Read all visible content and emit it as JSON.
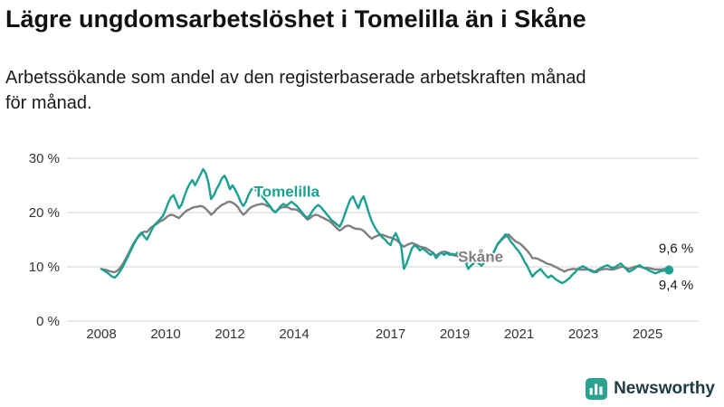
{
  "header": {
    "title": "Lägre ungdomsarbetslöshet i Tomelilla än i Skåne",
    "subtitle_lines": [
      "Arbetssökande som andel av den registerbaserade arbetskraften månad",
      "för månad."
    ]
  },
  "footer": {
    "brand": "Newsworthy",
    "brand_icon_color": "#2ba18f",
    "brand_text_color": "#1d3a45"
  },
  "chart_data": {
    "type": "line",
    "title": "Lägre ungdomsarbetslöshet i Tomelilla än i Skåne",
    "xlabel": "",
    "ylabel": "",
    "ylim": [
      0,
      33
    ],
    "x_domain": [
      2008,
      2025.75
    ],
    "grid": "horizontal",
    "legend": "inline-labels",
    "colors": {
      "grid": "#d3d3d3",
      "axis_text": "#333333"
    },
    "x_ticks": [
      2008,
      2010,
      2012,
      2014,
      2017,
      2019,
      2021,
      2023,
      2025
    ],
    "y_ticks": [
      {
        "value": 0,
        "label": "0 %"
      },
      {
        "value": 10,
        "label": "10 %"
      },
      {
        "value": 20,
        "label": "20 %"
      },
      {
        "value": 30,
        "label": "30 %"
      }
    ],
    "years": [
      2008,
      2009,
      2010,
      2011,
      2012,
      2013,
      2014,
      2015,
      2016,
      2017,
      2018,
      2019,
      2020,
      2021,
      2022,
      2023,
      2024,
      2025
    ],
    "unit": "%",
    "series": [
      {
        "name": "Tomelilla",
        "color": "#1aa191",
        "dot_radius": 5,
        "end_value_label": "9,4 %",
        "values_by_year": {
          "2008": [
            9.6,
            9.3,
            9.0,
            8.6,
            8.2,
            8.0,
            8.5,
            9.2,
            10.0,
            11.0,
            12.0,
            13.0
          ],
          "2009": [
            14.0,
            15.0,
            15.8,
            16.3,
            15.6,
            15.0,
            16.0,
            17.0,
            17.8,
            18.3,
            18.8,
            19.4
          ],
          "2010": [
            20.5,
            21.8,
            22.8,
            23.2,
            22.0,
            20.8,
            21.5,
            23.0,
            24.3,
            25.3,
            26.0,
            25.0
          ],
          "2011": [
            26.0,
            27.0,
            28.0,
            27.2,
            25.5,
            22.5,
            23.2,
            24.3,
            25.2,
            26.3,
            26.8,
            25.8
          ],
          "2012": [
            24.3,
            25.0,
            24.2,
            23.2,
            22.0,
            21.2,
            22.0,
            23.3,
            24.2,
            24.6,
            24.0,
            23.4
          ],
          "2013": [
            23.0,
            22.4,
            21.8,
            21.2,
            20.4,
            20.0,
            20.6,
            21.2,
            21.6,
            21.2,
            21.6,
            22.0
          ],
          "2014": [
            21.6,
            21.2,
            20.6,
            20.0,
            19.4,
            19.0,
            19.6,
            20.4,
            21.0,
            21.4,
            21.0,
            20.4
          ],
          "2015": [
            19.8,
            19.2,
            18.6,
            18.2,
            17.8,
            17.4,
            18.4,
            19.8,
            21.2,
            22.4,
            23.0,
            21.8
          ],
          "2016": [
            20.8,
            22.2,
            23.0,
            21.4,
            19.8,
            18.4,
            17.4,
            16.6,
            16.0,
            15.4,
            15.0,
            14.4
          ],
          "2017": [
            14.0,
            15.4,
            16.2,
            15.0,
            13.8,
            9.6,
            10.6,
            12.0,
            13.4,
            14.0,
            13.6,
            13.0
          ],
          "2018": [
            13.4,
            13.0,
            12.6,
            12.2,
            12.6,
            11.6,
            12.2,
            12.6,
            12.2,
            12.6,
            12.2,
            12.4
          ],
          "2019": [
            12.2,
            12.6,
            12.0,
            11.6,
            11.0,
            9.6,
            10.2,
            10.6,
            11.0,
            10.6,
            10.2,
            10.8
          ],
          "2020": [
            11.2,
            11.6,
            12.2,
            13.2,
            14.2,
            14.8,
            15.4,
            16.0,
            15.4,
            14.6,
            14.0,
            13.4
          ],
          "2021": [
            12.8,
            12.0,
            11.0,
            10.2,
            9.2,
            8.2,
            8.8,
            9.2,
            9.6,
            9.0,
            8.4,
            8.0
          ],
          "2022": [
            8.4,
            8.0,
            7.6,
            7.3,
            7.0,
            7.2,
            7.6,
            8.0,
            8.6,
            9.0,
            9.6,
            9.9
          ],
          "2023": [
            10.1,
            9.8,
            9.5,
            9.2,
            9.0,
            9.3,
            9.6,
            9.9,
            10.1,
            10.3,
            10.0,
            9.8
          ],
          "2024": [
            10.0,
            10.3,
            10.6,
            10.1,
            9.6,
            9.1,
            9.3,
            9.6,
            10.0,
            10.3,
            10.0,
            9.7
          ],
          "2025": [
            9.5,
            9.2,
            9.0,
            8.8,
            9.0,
            9.2,
            9.3,
            9.4,
            9.4
          ]
        }
      },
      {
        "name": "Skåne",
        "color": "#7f7f7f",
        "dot_radius": 4,
        "end_value_label": "9,6 %",
        "values_by_year": {
          "2008": [
            9.6,
            9.5,
            9.4,
            9.2,
            9.1,
            9.0,
            9.3,
            9.8,
            10.5,
            11.4,
            12.3,
            13.3
          ],
          "2009": [
            14.3,
            15.0,
            15.6,
            16.1,
            16.5,
            16.4,
            17.0,
            17.4,
            17.7,
            18.0,
            18.4,
            18.6
          ],
          "2010": [
            19.0,
            19.4,
            19.6,
            19.5,
            19.2,
            19.0,
            19.5,
            20.0,
            20.4,
            20.6,
            20.9,
            21.0
          ],
          "2011": [
            21.1,
            21.2,
            21.1,
            20.7,
            20.2,
            19.6,
            20.0,
            20.6,
            21.0,
            21.4,
            21.6,
            21.9
          ],
          "2012": [
            22.0,
            21.8,
            21.5,
            21.0,
            20.2,
            19.6,
            20.0,
            20.6,
            21.0,
            21.2,
            21.4,
            21.5
          ],
          "2013": [
            21.6,
            21.5,
            21.2,
            21.0,
            20.5,
            20.1,
            20.5,
            20.9,
            21.0,
            21.0,
            20.9,
            20.6
          ],
          "2014": [
            20.6,
            20.5,
            20.2,
            19.7,
            19.2,
            18.7,
            19.0,
            19.4,
            19.6,
            19.5,
            19.2,
            19.0
          ],
          "2015": [
            18.7,
            18.5,
            18.1,
            17.6,
            17.1,
            16.7,
            17.0,
            17.4,
            17.6,
            17.5,
            17.2,
            17.0
          ],
          "2016": [
            17.0,
            16.9,
            16.6,
            16.1,
            15.6,
            15.2,
            15.5,
            15.7,
            15.9,
            15.9,
            15.7,
            15.5
          ],
          "2017": [
            15.4,
            15.2,
            15.0,
            14.6,
            14.1,
            13.7,
            14.0,
            14.2,
            14.4,
            14.2,
            14.0,
            13.7
          ],
          "2018": [
            13.6,
            13.5,
            13.2,
            12.9,
            12.5,
            12.1,
            12.4,
            12.7,
            12.8,
            12.7,
            12.5,
            12.2
          ],
          "2019": [
            12.1,
            12.0,
            11.8,
            11.5,
            11.2,
            10.8,
            11.1,
            11.4,
            11.5,
            11.5,
            11.4,
            11.4
          ],
          "2020": [
            11.5,
            11.6,
            12.1,
            13.1,
            14.1,
            14.7,
            15.2,
            15.6,
            16.0,
            15.5,
            15.0,
            14.6
          ],
          "2021": [
            14.4,
            14.0,
            13.5,
            13.0,
            12.4,
            11.6,
            11.6,
            11.5,
            11.2,
            11.0,
            10.7,
            10.5
          ],
          "2022": [
            10.4,
            10.1,
            9.9,
            9.6,
            9.4,
            9.1,
            9.4,
            9.5,
            9.6,
            9.6,
            9.5,
            9.5
          ],
          "2023": [
            9.5,
            9.5,
            9.5,
            9.4,
            9.1,
            9.0,
            9.4,
            9.5,
            9.6,
            9.6,
            9.5,
            9.5
          ],
          "2024": [
            9.6,
            9.8,
            10.0,
            10.0,
            9.8,
            9.6,
            9.8,
            10.0,
            10.1,
            10.0,
            9.9,
            9.8
          ],
          "2025": [
            9.8,
            9.7,
            9.6,
            9.5,
            9.5,
            9.5,
            9.6,
            9.6,
            9.6
          ]
        }
      }
    ],
    "annotations": [
      {
        "text": "Tomelilla",
        "year": 2012.75,
        "value": 22.9,
        "color": "#1aa191",
        "bold": true,
        "size": 17
      },
      {
        "text": "Skåne",
        "year": 2019.1,
        "value": 10.9,
        "color": "#7f7f7f",
        "bold": true,
        "size": 17
      },
      {
        "text": "9,6 %",
        "year": 2025.35,
        "value": 12.6,
        "color": "#1a1a1a",
        "bold": false,
        "size": 15
      },
      {
        "text": "9,4 %",
        "year": 2025.35,
        "value": 5.8,
        "color": "#1a1a1a",
        "bold": false,
        "size": 15
      }
    ]
  }
}
